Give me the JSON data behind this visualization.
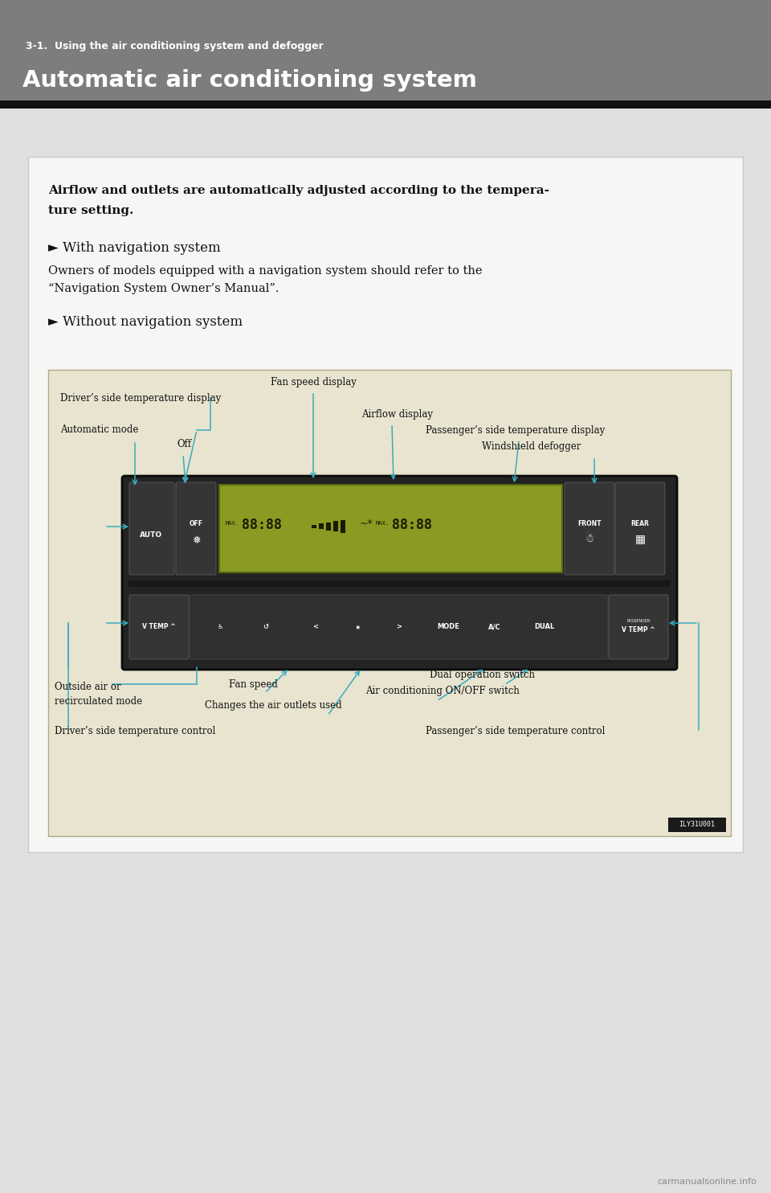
{
  "page_bg": "#1c1c1c",
  "header_bg": "#808080",
  "header_subtitle": "3-1.  Using the air conditioning system and defogger",
  "header_title": "Automatic air conditioning system",
  "content_bg": "#e8e8e8",
  "white_box_bg": "#f5f5f3",
  "diag_box_bg": "#e8e4cf",
  "body_text_bold": "Airflow and outlets are automatically adjusted according to the tempera-\nture setting.",
  "nav_label_1": "► With navigation system",
  "nav_body_1a": "Owners of models equipped with a navigation system should refer to the",
  "nav_body_1b": "“Navigation System Owner’s Manual”.",
  "nav_label_2": "► Without navigation system",
  "ann_color": "#3aabbd",
  "label_color": "#111111",
  "image_id": "ILY31U001",
  "watermark": "carmanualsonline.info"
}
